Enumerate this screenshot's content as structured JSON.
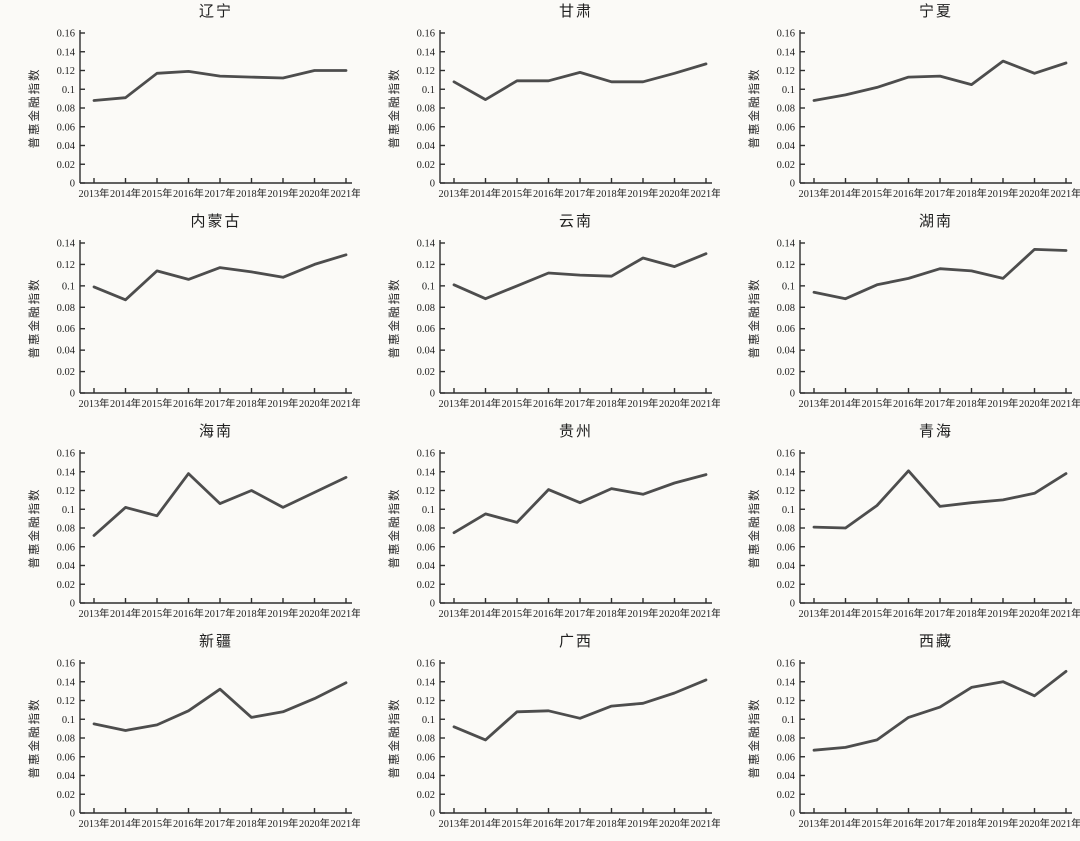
{
  "page": {
    "background": "#fbfaf7",
    "text_color": "#1f1f1f",
    "axis_color": "#2e2e2e",
    "line_color": "#4d4d4d"
  },
  "chart_data": [
    {
      "type": "line",
      "title": "辽宁",
      "ylabel": "普惠金融指数",
      "x": [
        "2013年",
        "2014年",
        "2015年",
        "2016年",
        "2017年",
        "2018年",
        "2019年",
        "2020年",
        "2021年"
      ],
      "values": [
        0.088,
        0.091,
        0.117,
        0.119,
        0.114,
        0.113,
        0.112,
        0.12,
        0.12
      ],
      "ylim": [
        0,
        0.16
      ],
      "yticks": [
        0,
        0.02,
        0.04,
        0.06,
        0.08,
        0.1,
        0.12,
        0.14,
        0.16
      ],
      "ytick_labels": [
        "0",
        "0.02",
        "0.04",
        "0.06",
        "0.08",
        "0.1",
        "0.12",
        "0.14",
        "0.16"
      ],
      "grid": false,
      "legend": "none"
    },
    {
      "type": "line",
      "title": "甘肃",
      "ylabel": "普惠金融指数",
      "x": [
        "2013年",
        "2014年",
        "2015年",
        "2016年",
        "2017年",
        "2018年",
        "2019年",
        "2020年",
        "2021年"
      ],
      "values": [
        0.108,
        0.089,
        0.109,
        0.109,
        0.118,
        0.108,
        0.108,
        0.117,
        0.127
      ],
      "ylim": [
        0,
        0.16
      ],
      "yticks": [
        0,
        0.02,
        0.04,
        0.06,
        0.08,
        0.1,
        0.12,
        0.14,
        0.16
      ],
      "ytick_labels": [
        "0",
        "0.02",
        "0.04",
        "0.06",
        "0.08",
        "0.1",
        "0.12",
        "0.14",
        "0.16"
      ],
      "grid": false,
      "legend": "none"
    },
    {
      "type": "line",
      "title": "宁夏",
      "ylabel": "普惠金融指数",
      "x": [
        "2013年",
        "2014年",
        "2015年",
        "2016年",
        "2017年",
        "2018年",
        "2019年",
        "2020年",
        "2021年"
      ],
      "values": [
        0.088,
        0.094,
        0.102,
        0.113,
        0.114,
        0.105,
        0.13,
        0.117,
        0.128
      ],
      "ylim": [
        0,
        0.16
      ],
      "yticks": [
        0,
        0.02,
        0.04,
        0.06,
        0.08,
        0.1,
        0.12,
        0.14,
        0.16
      ],
      "ytick_labels": [
        "0",
        "0.02",
        "0.04",
        "0.06",
        "0.08",
        "0.1",
        "0.12",
        "0.14",
        "0.16"
      ],
      "grid": false,
      "legend": "none"
    },
    {
      "type": "line",
      "title": "内蒙古",
      "ylabel": "普惠金融指数",
      "x": [
        "2013年",
        "2014年",
        "2015年",
        "2016年",
        "2017年",
        "2018年",
        "2019年",
        "2020年",
        "2021年"
      ],
      "values": [
        0.099,
        0.087,
        0.114,
        0.106,
        0.117,
        0.113,
        0.108,
        0.12,
        0.129
      ],
      "ylim": [
        0,
        0.14
      ],
      "yticks": [
        0,
        0.02,
        0.04,
        0.06,
        0.08,
        0.1,
        0.12,
        0.14
      ],
      "ytick_labels": [
        "0",
        "0.02",
        "0.04",
        "0.06",
        "0.08",
        "0.1",
        "0.12",
        "0.14"
      ],
      "grid": false,
      "legend": "none"
    },
    {
      "type": "line",
      "title": "云南",
      "ylabel": "普惠金融指数",
      "x": [
        "2013年",
        "2014年",
        "2015年",
        "2016年",
        "2017年",
        "2018年",
        "2019年",
        "2020年",
        "2021年"
      ],
      "values": [
        0.101,
        0.088,
        0.1,
        0.112,
        0.11,
        0.109,
        0.126,
        0.118,
        0.13
      ],
      "ylim": [
        0,
        0.14
      ],
      "yticks": [
        0,
        0.02,
        0.04,
        0.06,
        0.08,
        0.1,
        0.12,
        0.14
      ],
      "ytick_labels": [
        "0",
        "0.02",
        "0.04",
        "0.06",
        "0.08",
        "0.1",
        "0.12",
        "0.14"
      ],
      "grid": false,
      "legend": "none"
    },
    {
      "type": "line",
      "title": "湖南",
      "ylabel": "普惠金融指数",
      "x": [
        "2013年",
        "2014年",
        "2015年",
        "2016年",
        "2017年",
        "2018年",
        "2019年",
        "2020年",
        "2021年"
      ],
      "values": [
        0.094,
        0.088,
        0.101,
        0.107,
        0.116,
        0.114,
        0.107,
        0.134,
        0.133
      ],
      "ylim": [
        0,
        0.14
      ],
      "yticks": [
        0,
        0.02,
        0.04,
        0.06,
        0.08,
        0.1,
        0.12,
        0.14
      ],
      "ytick_labels": [
        "0",
        "0.02",
        "0.04",
        "0.06",
        "0.08",
        "0.1",
        "0.12",
        "0.14"
      ],
      "grid": false,
      "legend": "none"
    },
    {
      "type": "line",
      "title": "海南",
      "ylabel": "普惠金融指数",
      "x": [
        "2013年",
        "2014年",
        "2015年",
        "2016年",
        "2017年",
        "2018年",
        "2019年",
        "2020年",
        "2021年"
      ],
      "values": [
        0.072,
        0.102,
        0.093,
        0.138,
        0.106,
        0.12,
        0.102,
        0.118,
        0.134
      ],
      "ylim": [
        0,
        0.16
      ],
      "yticks": [
        0,
        0.02,
        0.04,
        0.06,
        0.08,
        0.1,
        0.12,
        0.14,
        0.16
      ],
      "ytick_labels": [
        "0",
        "0.02",
        "0.04",
        "0.06",
        "0.08",
        "0.1",
        "0.12",
        "0.14",
        "0.16"
      ],
      "grid": false,
      "legend": "none"
    },
    {
      "type": "line",
      "title": "贵州",
      "ylabel": "普惠金融指数",
      "x": [
        "2013年",
        "2014年",
        "2015年",
        "2016年",
        "2017年",
        "2018年",
        "2019年",
        "2020年",
        "2021年"
      ],
      "values": [
        0.075,
        0.095,
        0.086,
        0.121,
        0.107,
        0.122,
        0.116,
        0.128,
        0.137
      ],
      "ylim": [
        0,
        0.16
      ],
      "yticks": [
        0,
        0.02,
        0.04,
        0.06,
        0.08,
        0.1,
        0.12,
        0.14,
        0.16
      ],
      "ytick_labels": [
        "0",
        "0.02",
        "0.04",
        "0.06",
        "0.08",
        "0.1",
        "0.12",
        "0.14",
        "0.16"
      ],
      "grid": false,
      "legend": "none"
    },
    {
      "type": "line",
      "title": "青海",
      "ylabel": "普惠金融指数",
      "x": [
        "2013年",
        "2014年",
        "2015年",
        "2016年",
        "2017年",
        "2018年",
        "2019年",
        "2020年",
        "2021年"
      ],
      "values": [
        0.081,
        0.08,
        0.104,
        0.141,
        0.103,
        0.107,
        0.11,
        0.117,
        0.138
      ],
      "ylim": [
        0,
        0.16
      ],
      "yticks": [
        0,
        0.02,
        0.04,
        0.06,
        0.08,
        0.1,
        0.12,
        0.14,
        0.16
      ],
      "ytick_labels": [
        "0",
        "0.02",
        "0.04",
        "0.06",
        "0.08",
        "0.1",
        "0.12",
        "0.14",
        "0.16"
      ],
      "grid": false,
      "legend": "none"
    },
    {
      "type": "line",
      "title": "新疆",
      "ylabel": "普惠金融指数",
      "x": [
        "2013年",
        "2014年",
        "2015年",
        "2016年",
        "2017年",
        "2018年",
        "2019年",
        "2020年",
        "2021年"
      ],
      "values": [
        0.095,
        0.088,
        0.094,
        0.109,
        0.132,
        0.102,
        0.108,
        0.122,
        0.139
      ],
      "ylim": [
        0,
        0.16
      ],
      "yticks": [
        0,
        0.02,
        0.04,
        0.06,
        0.08,
        0.1,
        0.12,
        0.14,
        0.16
      ],
      "ytick_labels": [
        "0",
        "0.02",
        "0.04",
        "0.06",
        "0.08",
        "0.1",
        "0.12",
        "0.14",
        "0.16"
      ],
      "grid": false,
      "legend": "none"
    },
    {
      "type": "line",
      "title": "广西",
      "ylabel": "普惠金融指数",
      "x": [
        "2013年",
        "2014年",
        "2015年",
        "2016年",
        "2017年",
        "2018年",
        "2019年",
        "2020年",
        "2021年"
      ],
      "values": [
        0.092,
        0.078,
        0.108,
        0.109,
        0.101,
        0.114,
        0.117,
        0.128,
        0.142
      ],
      "ylim": [
        0,
        0.16
      ],
      "yticks": [
        0,
        0.02,
        0.04,
        0.06,
        0.08,
        0.1,
        0.12,
        0.14,
        0.16
      ],
      "ytick_labels": [
        "0",
        "0.02",
        "0.04",
        "0.06",
        "0.08",
        "0.1",
        "0.12",
        "0.14",
        "0.16"
      ],
      "grid": false,
      "legend": "none"
    },
    {
      "type": "line",
      "title": "西藏",
      "ylabel": "普惠金融指数",
      "x": [
        "2013年",
        "2014年",
        "2015年",
        "2016年",
        "2017年",
        "2018年",
        "2019年",
        "2020年",
        "2021年"
      ],
      "values": [
        0.067,
        0.07,
        0.078,
        0.102,
        0.113,
        0.134,
        0.14,
        0.125,
        0.151
      ],
      "ylim": [
        0,
        0.16
      ],
      "yticks": [
        0,
        0.02,
        0.04,
        0.06,
        0.08,
        0.1,
        0.12,
        0.14,
        0.16
      ],
      "ytick_labels": [
        "0",
        "0.02",
        "0.04",
        "0.06",
        "0.08",
        "0.1",
        "0.12",
        "0.14",
        "0.16"
      ],
      "grid": false,
      "legend": "none"
    }
  ]
}
